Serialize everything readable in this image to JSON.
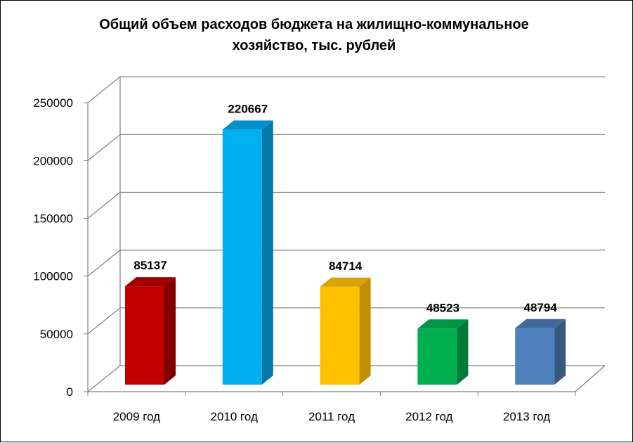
{
  "chart_data": {
    "type": "bar",
    "title_lines": [
      "Общий объем расходов бюджета на жилищно-коммунальное",
      "хозяйство, тыс. рублей"
    ],
    "categories": [
      "2009 год",
      "2010 год",
      "2011 год",
      "2012 год",
      "2013 год"
    ],
    "values": [
      85137,
      220667,
      84714,
      48523,
      48794
    ],
    "data_labels": [
      "85137",
      "220667",
      "84714",
      "48523",
      "48794"
    ],
    "yticks": [
      "0",
      "50000",
      "100000",
      "150000",
      "200000",
      "250000"
    ],
    "ylim": [
      0,
      250000
    ],
    "grid": true,
    "legend": "none",
    "bar_colors": [
      {
        "front": "#C00000",
        "side": "#7F0000",
        "top": "#A00000"
      },
      {
        "front": "#00B0F0",
        "side": "#0078A8",
        "top": "#0092C8"
      },
      {
        "front": "#FFC000",
        "side": "#C08F00",
        "top": "#D9A300"
      },
      {
        "front": "#00B050",
        "side": "#007A37",
        "top": "#009444"
      },
      {
        "front": "#4F81BD",
        "side": "#35587F",
        "top": "#40699A"
      }
    ],
    "grid_color": "#7F7F7F"
  }
}
